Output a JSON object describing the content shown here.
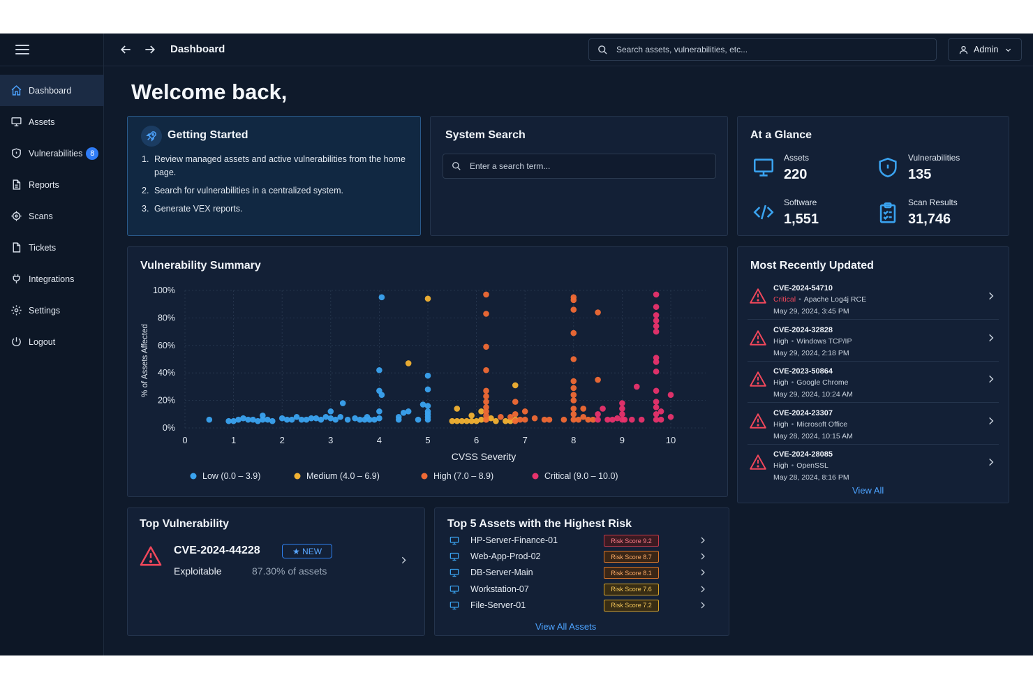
{
  "header": {
    "title": "Dashboard",
    "search_placeholder": "Search assets, vulnerabilities, etc...",
    "user_label": "Admin"
  },
  "sidebar": {
    "items": [
      {
        "label": "Dashboard",
        "icon": "home-icon",
        "active": true
      },
      {
        "label": "Assets",
        "icon": "monitor-icon"
      },
      {
        "label": "Vulnerabilities",
        "icon": "shield-icon",
        "badge": "8"
      },
      {
        "label": "Reports",
        "icon": "document-icon"
      },
      {
        "label": "Scans",
        "icon": "crosshair-icon"
      },
      {
        "label": "Tickets",
        "icon": "ticket-icon"
      },
      {
        "label": "Integrations",
        "icon": "plug-icon"
      },
      {
        "label": "Settings",
        "icon": "gear-icon"
      },
      {
        "label": "Logout",
        "icon": "power-icon"
      }
    ]
  },
  "welcome": "Welcome back,",
  "getting_started": {
    "title": "Getting Started",
    "steps": [
      {
        "num": "1.",
        "text": "Review managed assets and active vulnerabilities from the home page."
      },
      {
        "num": "2.",
        "text": "Search for vulnerabilities in a centralized system."
      },
      {
        "num": "3.",
        "text": "Generate VEX reports."
      }
    ]
  },
  "system_search": {
    "title": "System Search",
    "placeholder": "Enter a search term..."
  },
  "at_a_glance": {
    "title": "At a Glance",
    "stats": [
      {
        "label": "Assets",
        "value": "220",
        "icon": "monitor-icon"
      },
      {
        "label": "Vulnerabilities",
        "value": "135",
        "icon": "shield-icon"
      },
      {
        "label": "Software",
        "value": "1,551",
        "icon": "code-icon"
      },
      {
        "label": "Scan Results",
        "value": "31,746",
        "icon": "clipboard-icon"
      }
    ]
  },
  "vulnerability_summary": {
    "title": "Vulnerability Summary"
  },
  "chart_data": {
    "type": "scatter",
    "xlabel": "CVSS Severity",
    "ylabel": "% of Assets Affected",
    "xlim": [
      0,
      10
    ],
    "ylim": [
      0,
      100
    ],
    "xticks": [
      "0",
      "1",
      "2",
      "3",
      "4",
      "5",
      "6",
      "7",
      "8",
      "9",
      "10"
    ],
    "yticks": [
      "0%",
      "20%",
      "40%",
      "60%",
      "80%",
      "100%"
    ],
    "grid": true,
    "legend": "bottom",
    "series": [
      {
        "name": "Low (0.0 – 3.9)",
        "color": "#3aa3f0",
        "points": [
          [
            0.5,
            6
          ],
          [
            0.9,
            5
          ],
          [
            1.0,
            5
          ],
          [
            1.1,
            6
          ],
          [
            1.2,
            7
          ],
          [
            1.3,
            6
          ],
          [
            1.4,
            6
          ],
          [
            1.5,
            5
          ],
          [
            1.6,
            6
          ],
          [
            1.6,
            9
          ],
          [
            1.7,
            6
          ],
          [
            1.8,
            5
          ],
          [
            2.0,
            7
          ],
          [
            2.1,
            6
          ],
          [
            2.2,
            6
          ],
          [
            2.3,
            8
          ],
          [
            2.4,
            6
          ],
          [
            2.5,
            6
          ],
          [
            2.6,
            7
          ],
          [
            2.7,
            7
          ],
          [
            2.8,
            6
          ],
          [
            2.9,
            8
          ],
          [
            3.0,
            7
          ],
          [
            3.0,
            12
          ],
          [
            3.1,
            6
          ],
          [
            3.2,
            8
          ],
          [
            3.25,
            18
          ],
          [
            3.35,
            6
          ],
          [
            3.5,
            7
          ],
          [
            3.6,
            6
          ],
          [
            3.7,
            6
          ],
          [
            3.75,
            8
          ],
          [
            3.8,
            6
          ],
          [
            3.9,
            6
          ],
          [
            4.0,
            7
          ],
          [
            4.0,
            12
          ],
          [
            4.0,
            27
          ],
          [
            4.0,
            42
          ],
          [
            4.05,
            24
          ],
          [
            4.05,
            95
          ],
          [
            4.4,
            6
          ],
          [
            4.4,
            8
          ],
          [
            4.5,
            11
          ],
          [
            4.6,
            12
          ],
          [
            4.8,
            6
          ],
          [
            4.9,
            17
          ],
          [
            5.0,
            6
          ],
          [
            5.0,
            8
          ],
          [
            5.0,
            10
          ],
          [
            5.0,
            12
          ],
          [
            5.0,
            16
          ],
          [
            5.0,
            38
          ],
          [
            5.0,
            28
          ]
        ]
      },
      {
        "name": "Medium (4.0 – 6.9)",
        "color": "#f2b233",
        "points": [
          [
            4.6,
            47
          ],
          [
            5.0,
            94
          ],
          [
            5.5,
            5
          ],
          [
            5.6,
            5
          ],
          [
            5.7,
            5
          ],
          [
            5.8,
            5
          ],
          [
            5.9,
            5
          ],
          [
            6.0,
            5
          ],
          [
            6.1,
            6
          ],
          [
            6.2,
            6
          ],
          [
            6.3,
            7
          ],
          [
            6.4,
            5
          ],
          [
            5.6,
            14
          ],
          [
            5.9,
            9
          ],
          [
            6.1,
            12
          ],
          [
            6.6,
            5
          ],
          [
            6.7,
            5
          ],
          [
            6.8,
            6
          ],
          [
            6.8,
            31
          ]
        ]
      },
      {
        "name": "High (7.0 – 8.9)",
        "color": "#f06a35",
        "points": [
          [
            6.2,
            97
          ],
          [
            6.2,
            83
          ],
          [
            6.2,
            59
          ],
          [
            6.2,
            42
          ],
          [
            6.2,
            27
          ],
          [
            6.2,
            23
          ],
          [
            6.2,
            19
          ],
          [
            6.2,
            15
          ],
          [
            6.2,
            12
          ],
          [
            6.2,
            9
          ],
          [
            6.2,
            6
          ],
          [
            6.5,
            8
          ],
          [
            6.7,
            8
          ],
          [
            6.8,
            5
          ],
          [
            6.8,
            19
          ],
          [
            6.8,
            10
          ],
          [
            6.9,
            6
          ],
          [
            7.0,
            6
          ],
          [
            7.0,
            12
          ],
          [
            7.2,
            7
          ],
          [
            7.4,
            6
          ],
          [
            7.5,
            6
          ],
          [
            7.8,
            6
          ],
          [
            8.0,
            6
          ],
          [
            8.0,
            10
          ],
          [
            8.0,
            14
          ],
          [
            8.0,
            20
          ],
          [
            8.0,
            24
          ],
          [
            8.0,
            29
          ],
          [
            8.0,
            34
          ],
          [
            8.0,
            50
          ],
          [
            8.0,
            69
          ],
          [
            8.0,
            86
          ],
          [
            8.0,
            93
          ],
          [
            8.0,
            95
          ],
          [
            8.1,
            6
          ],
          [
            8.2,
            8
          ],
          [
            8.2,
            14
          ],
          [
            8.3,
            6
          ],
          [
            8.4,
            6
          ],
          [
            8.5,
            84
          ],
          [
            8.5,
            35
          ]
        ]
      },
      {
        "name": "Critical (9.0 – 10.0)",
        "color": "#e8336d",
        "points": [
          [
            8.5,
            6
          ],
          [
            8.5,
            10
          ],
          [
            8.6,
            14
          ],
          [
            8.7,
            6
          ],
          [
            8.8,
            6
          ],
          [
            8.9,
            7
          ],
          [
            9.0,
            6
          ],
          [
            9.0,
            10
          ],
          [
            9.0,
            14
          ],
          [
            9.0,
            18
          ],
          [
            9.05,
            6
          ],
          [
            9.2,
            6
          ],
          [
            9.3,
            30
          ],
          [
            9.4,
            6
          ],
          [
            9.7,
            97
          ],
          [
            9.7,
            88
          ],
          [
            9.7,
            82
          ],
          [
            9.7,
            78
          ],
          [
            9.7,
            74
          ],
          [
            9.7,
            70
          ],
          [
            9.7,
            51
          ],
          [
            9.7,
            48
          ],
          [
            9.7,
            41
          ],
          [
            9.7,
            27
          ],
          [
            9.7,
            19
          ],
          [
            9.7,
            15
          ],
          [
            9.7,
            10
          ],
          [
            9.7,
            6
          ],
          [
            9.8,
            12
          ],
          [
            9.8,
            6
          ],
          [
            10.0,
            24
          ],
          [
            10.0,
            8
          ]
        ]
      }
    ]
  },
  "most_recently_updated": {
    "title": "Most Recently Updated",
    "items": [
      {
        "cve": "CVE-2024-54710",
        "severity": "Critical",
        "product": "Apache Log4j RCE",
        "date": "May 29, 2024, 3:45 PM"
      },
      {
        "cve": "CVE-2024-32828",
        "severity": "High",
        "product": "Windows TCP/IP",
        "date": "May 29, 2024, 2:18 PM"
      },
      {
        "cve": "CVE-2023-50864",
        "severity": "High",
        "product": "Google Chrome",
        "date": "May 29, 2024, 10:24 AM"
      },
      {
        "cve": "CVE-2024-23307",
        "severity": "High",
        "product": "Microsoft Office",
        "date": "May 28, 2024, 10:15 AM"
      },
      {
        "cve": "CVE-2024-28085",
        "severity": "High",
        "product": "OpenSSL",
        "date": "May 28, 2024, 8:16 PM"
      }
    ],
    "view_all": "View All"
  },
  "top_vulnerability": {
    "title": "Top Vulnerability",
    "cve": "CVE-2024-44228",
    "badge": "★ NEW",
    "status": "Exploitable",
    "percent": "87.30% of assets"
  },
  "top_assets": {
    "title": "Top 5 Assets with the Highest Risk",
    "items": [
      {
        "name": "HP-Server-Finance-01",
        "risk": "Risk Score 9.2",
        "level": "red"
      },
      {
        "name": "Web-App-Prod-02",
        "risk": "Risk Score 8.7",
        "level": "orange"
      },
      {
        "name": "DB-Server-Main",
        "risk": "Risk Score 8.1",
        "level": "orange"
      },
      {
        "name": "Workstation-07",
        "risk": "Risk Score 7.6",
        "level": "amber"
      },
      {
        "name": "File-Server-01",
        "risk": "Risk Score 7.2",
        "level": "amber"
      }
    ],
    "view_all": "View All Assets"
  },
  "colors": {
    "accent": "#2f7cf6",
    "critical": "#f0475b",
    "background": "#0f1a2b"
  }
}
